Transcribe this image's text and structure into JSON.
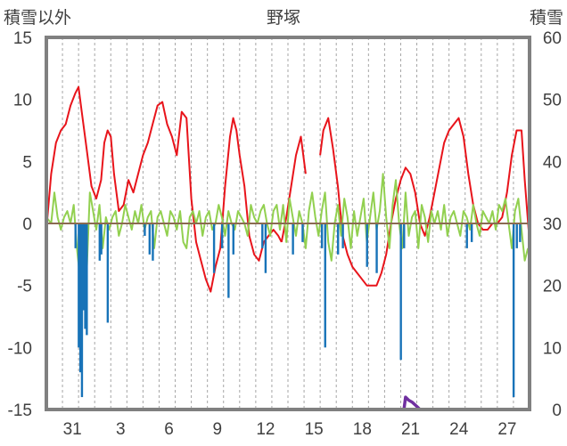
{
  "chart_data": {
    "type": "line",
    "title": "野塚",
    "ylabel_left": "積雪以外",
    "ylabel_right": "積雪",
    "ylim_left": [
      -15,
      15
    ],
    "yticks_left": [
      -15,
      -10,
      -5,
      0,
      5,
      10,
      15
    ],
    "ylim_right": [
      0,
      60
    ],
    "yticks_right": [
      0,
      10,
      20,
      30,
      40,
      50,
      60
    ],
    "x_tick_labels": [
      "31",
      "3",
      "6",
      "9",
      "12",
      "15",
      "18",
      "21",
      "24",
      "27"
    ],
    "x_tick_days": [
      2,
      5,
      8,
      11,
      14,
      17,
      20,
      23,
      26,
      29
    ],
    "xlim_days": [
      0,
      30
    ],
    "grid": "vertical dashed, daily",
    "colors": {
      "temperature": "#e8141b",
      "precipitation": "#1873b8",
      "wind": "#92d050",
      "snow": "#7030a0",
      "frame": "#808080",
      "zero_line": "#8a6a50"
    },
    "series": [
      {
        "axis": "left",
        "color": "#e8141b",
        "x": [
          0.0,
          0.3,
          0.6,
          0.9,
          1.2,
          1.5,
          1.8,
          2.0,
          2.2,
          2.5,
          2.8,
          3.1,
          3.4,
          3.6,
          3.8,
          4.0,
          4.2,
          4.5,
          4.8,
          5.1,
          5.4,
          5.7,
          6.0,
          6.3,
          6.6,
          6.9,
          7.2,
          7.5,
          7.8,
          8.1,
          8.4,
          8.7,
          9.0,
          9.3,
          9.6,
          9.9,
          10.2,
          10.5,
          10.8,
          11.1,
          11.4,
          11.6,
          11.8,
          12.0,
          12.3,
          12.6,
          12.9,
          13.2,
          13.5,
          13.8,
          14.1,
          14.4,
          14.6
        ],
        "y": [
          -0.5,
          4.0,
          6.5,
          7.5,
          8.0,
          9.5,
          10.5,
          11.0,
          9.0,
          6.0,
          3.0,
          2.0,
          3.5,
          6.5,
          7.5,
          7.0,
          4.0,
          1.0,
          1.5,
          3.5,
          2.5,
          4.0,
          5.5,
          6.5,
          8.0,
          9.5,
          9.8,
          8.0,
          7.0,
          5.5,
          9.0,
          8.5,
          2.0,
          -1.5,
          -3.0,
          -4.5,
          -5.5,
          -3.5,
          -2.0,
          3.0,
          7.0,
          8.5,
          7.5,
          5.5,
          3.0,
          -1.0,
          -2.5,
          -3.0,
          -1.5,
          -1.0,
          -0.5,
          -1.0,
          -1.5
        ]
      },
      {
        "axis": "left",
        "color": "#e8141b",
        "x": [
          14.6,
          14.9,
          15.2,
          15.5,
          15.8,
          16.1
        ],
        "y": [
          -1.5,
          0.5,
          3.0,
          5.5,
          7.0,
          4.0
        ]
      },
      {
        "axis": "left",
        "color": "#e8141b",
        "x": [
          17.0,
          17.2,
          17.5,
          17.8,
          18.1,
          18.4,
          18.7,
          19.0,
          19.3,
          19.6,
          19.9,
          20.2,
          20.5,
          20.8,
          21.1,
          21.4,
          21.7,
          22.0,
          22.3,
          22.6,
          22.9,
          23.2,
          23.5,
          23.8,
          24.1,
          24.4,
          24.7,
          25.0,
          25.3,
          25.6,
          25.9,
          26.2,
          26.5,
          26.8,
          27.1,
          27.4,
          27.7,
          28.0,
          28.3,
          28.6,
          28.9,
          29.2,
          29.5,
          29.7,
          30.0
        ],
        "y": [
          5.5,
          7.5,
          8.5,
          6.0,
          3.0,
          -1.0,
          -2.5,
          -3.5,
          -4.0,
          -4.5,
          -5.0,
          -5.0,
          -5.0,
          -4.0,
          -2.5,
          0.0,
          2.0,
          3.5,
          4.5,
          4.0,
          2.5,
          0.0,
          -1.0,
          0.5,
          2.5,
          4.5,
          6.5,
          7.5,
          8.0,
          8.5,
          7.0,
          4.0,
          1.5,
          0.0,
          -0.5,
          -0.5,
          0.0,
          0.0,
          0.5,
          2.5,
          5.5,
          7.5,
          7.5,
          3.5,
          -1.5
        ]
      },
      {
        "axis": "left",
        "color": "#92d050",
        "x": [
          0.0,
          0.3,
          0.5,
          0.7,
          0.9,
          1.1,
          1.3,
          1.5,
          1.7,
          1.9,
          2.1,
          2.3,
          2.5,
          2.7,
          2.9,
          3.1,
          3.3,
          3.5,
          3.7,
          3.9,
          4.1,
          4.3,
          4.5,
          4.7,
          4.9,
          5.1,
          5.3,
          5.5,
          5.7,
          5.9,
          6.1,
          6.3,
          6.5,
          6.7,
          6.9,
          7.1,
          7.3,
          7.5,
          7.7,
          7.9,
          8.1,
          8.3,
          8.5,
          8.7,
          8.9,
          9.1,
          9.3,
          9.5,
          9.7,
          9.9,
          10.1,
          10.3,
          10.5,
          10.7,
          10.9,
          11.1,
          11.3,
          11.5,
          11.7,
          11.9,
          12.1,
          12.3,
          12.5,
          12.7,
          12.9,
          13.1,
          13.3,
          13.5,
          13.7,
          13.9,
          14.1,
          14.3,
          14.5,
          14.7,
          14.9,
          15.1,
          15.3,
          15.5,
          15.7,
          15.9,
          16.1,
          16.3,
          16.5,
          16.7,
          16.9,
          17.1,
          17.3,
          17.5,
          17.7,
          17.9,
          18.1,
          18.3,
          18.5,
          18.7,
          18.9,
          19.1,
          19.3,
          19.5,
          19.7,
          19.9,
          20.1,
          20.3,
          20.5,
          20.7,
          20.9,
          21.1,
          21.3,
          21.5,
          21.7,
          21.9,
          22.1,
          22.3,
          22.5,
          22.7,
          22.9,
          23.1,
          23.3,
          23.5,
          23.7,
          23.9,
          24.1,
          24.3,
          24.5,
          24.7,
          24.9,
          25.1,
          25.3,
          25.5,
          25.7,
          25.9,
          26.1,
          26.3,
          26.5,
          26.7,
          26.9,
          27.1,
          27.3,
          27.5,
          27.7,
          27.9,
          28.1,
          28.3,
          28.5,
          28.7,
          28.9,
          29.1,
          29.3,
          29.5,
          29.7,
          29.9
        ],
        "y": [
          0.5,
          0.0,
          2.5,
          0.5,
          -0.5,
          0.5,
          1.0,
          0.0,
          1.5,
          -2.0,
          -4.5,
          -6.0,
          -4.0,
          2.5,
          1.0,
          -0.5,
          1.5,
          -2.0,
          0.5,
          -0.5,
          0.5,
          1.0,
          -1.0,
          0.0,
          1.5,
          0.5,
          -0.5,
          1.0,
          0.0,
          1.5,
          -0.5,
          0.5,
          1.0,
          -2.0,
          0.5,
          1.0,
          0.0,
          -1.0,
          1.0,
          0.5,
          -0.5,
          1.0,
          -1.5,
          -2.0,
          0.5,
          1.0,
          0.0,
          1.0,
          -1.0,
          0.5,
          1.0,
          -0.5,
          0.0,
          1.5,
          0.5,
          -1.0,
          1.0,
          0.0,
          -0.5,
          1.0,
          0.5,
          0.0,
          -1.0,
          1.5,
          0.5,
          0.0,
          1.0,
          1.5,
          0.0,
          -1.0,
          1.0,
          1.5,
          -0.5,
          1.5,
          -1.5,
          2.0,
          0.5,
          -1.0,
          1.0,
          0.0,
          -2.0,
          1.0,
          2.5,
          0.5,
          -1.0,
          1.0,
          2.5,
          -1.5,
          -3.0,
          0.0,
          1.5,
          -1.0,
          2.0,
          0.5,
          -2.0,
          1.0,
          -1.0,
          0.5,
          2.0,
          -1.5,
          0.5,
          2.5,
          -0.5,
          1.0,
          4.0,
          0.5,
          -2.0,
          1.5,
          3.5,
          0.0,
          -2.0,
          2.5,
          -1.0,
          0.5,
          1.0,
          -2.0,
          1.5,
          0.5,
          -1.5,
          1.0,
          0.0,
          1.0,
          -0.5,
          1.5,
          -1.0,
          0.5,
          1.0,
          0.0,
          -1.0,
          1.0,
          0.5,
          -0.5,
          1.5,
          0.0,
          -1.0,
          1.0,
          0.5,
          0.0,
          1.0,
          -0.5,
          1.5,
          1.0,
          2.0,
          0.0,
          -2.0,
          1.0,
          2.0,
          -0.5,
          -3.0,
          -2.0
        ]
      },
      {
        "axis": "left",
        "color": "#1873b8",
        "bars": true,
        "x": [
          1.8,
          2.0,
          2.1,
          2.2,
          2.3,
          2.4,
          2.5,
          3.3,
          3.4,
          3.8,
          6.1,
          6.4,
          6.6,
          10.4,
          10.9,
          11.3,
          11.6,
          13.4,
          13.6,
          15.3,
          15.9,
          17.1,
          17.3,
          18.1,
          18.4,
          19.9,
          20.5,
          22.0,
          22.2,
          26.1,
          26.4,
          29.0,
          29.2,
          29.4
        ],
        "y": [
          -2.0,
          -10.0,
          -12.0,
          -14.0,
          -7.0,
          -8.5,
          -9.0,
          -3.0,
          -2.5,
          -8.0,
          -1.0,
          -2.5,
          -3.0,
          -4.0,
          -2.0,
          -6.0,
          -2.5,
          -2.0,
          -4.0,
          -2.5,
          -1.5,
          -2.0,
          -10.0,
          -2.5,
          -2.0,
          -3.5,
          -4.0,
          -11.0,
          -2.0,
          -2.0,
          -1.5,
          -14.0,
          -2.0,
          -1.5
        ]
      },
      {
        "axis": "right",
        "color": "#7030a0",
        "x": [
          0.0,
          22.2,
          22.3,
          22.5,
          22.7,
          23.0,
          23.2,
          30.0
        ],
        "y": [
          0.0,
          0.0,
          2.0,
          1.5,
          1.2,
          0.5,
          0.0,
          0.0
        ]
      }
    ]
  }
}
